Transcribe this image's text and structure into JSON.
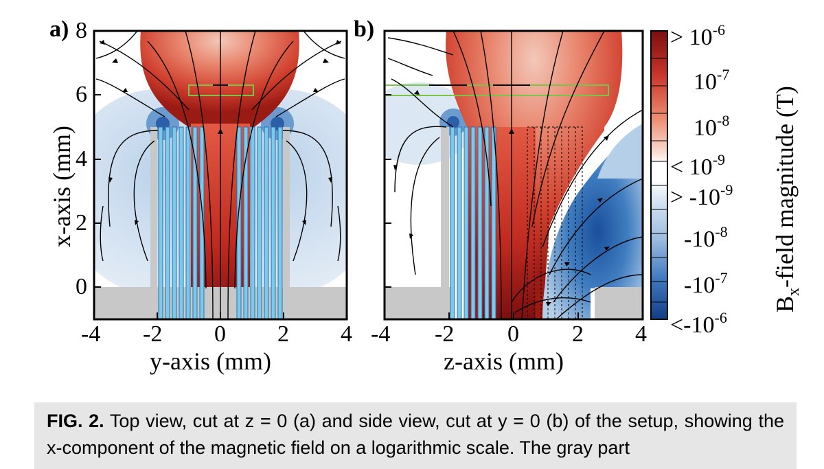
{
  "figure": {
    "panel_a": {
      "tag": "a)",
      "x_axis_title": "y-axis (mm)",
      "y_axis_title": "x-axis (mm)",
      "x_ticks": [
        "-4",
        "-2",
        "0",
        "2",
        "4"
      ],
      "y_ticks": [
        "8",
        "6",
        "4",
        "2",
        "0"
      ]
    },
    "panel_b": {
      "tag": "b)",
      "x_axis_title": "z-axis (mm)",
      "x_ticks": [
        "-4",
        "-2",
        "0",
        "2",
        "4"
      ]
    },
    "colorbar": {
      "title_main": "B",
      "title_sub": "x",
      "title_rest": "-field magnitude (T)",
      "labels": [
        {
          "prefix": "> 10",
          "exp": "-6"
        },
        {
          "prefix": "10",
          "exp": "-7"
        },
        {
          "prefix": "10",
          "exp": "-8"
        },
        {
          "prefix": "< 10",
          "exp": "-9"
        },
        {
          "prefix": "> -10",
          "exp": "-9"
        },
        {
          "prefix": "-10",
          "exp": "-8"
        },
        {
          "prefix": "-10",
          "exp": "-7"
        },
        {
          "prefix": "<-10",
          "exp": "-6"
        }
      ]
    }
  },
  "caption": {
    "label": "FIG. 2.",
    "text": "Top view, cut at z = 0 (a) and side view, cut at y = 0 (b) of the setup, showing the x-component of the magnetic field on a logarithmic scale. The gray part"
  }
}
